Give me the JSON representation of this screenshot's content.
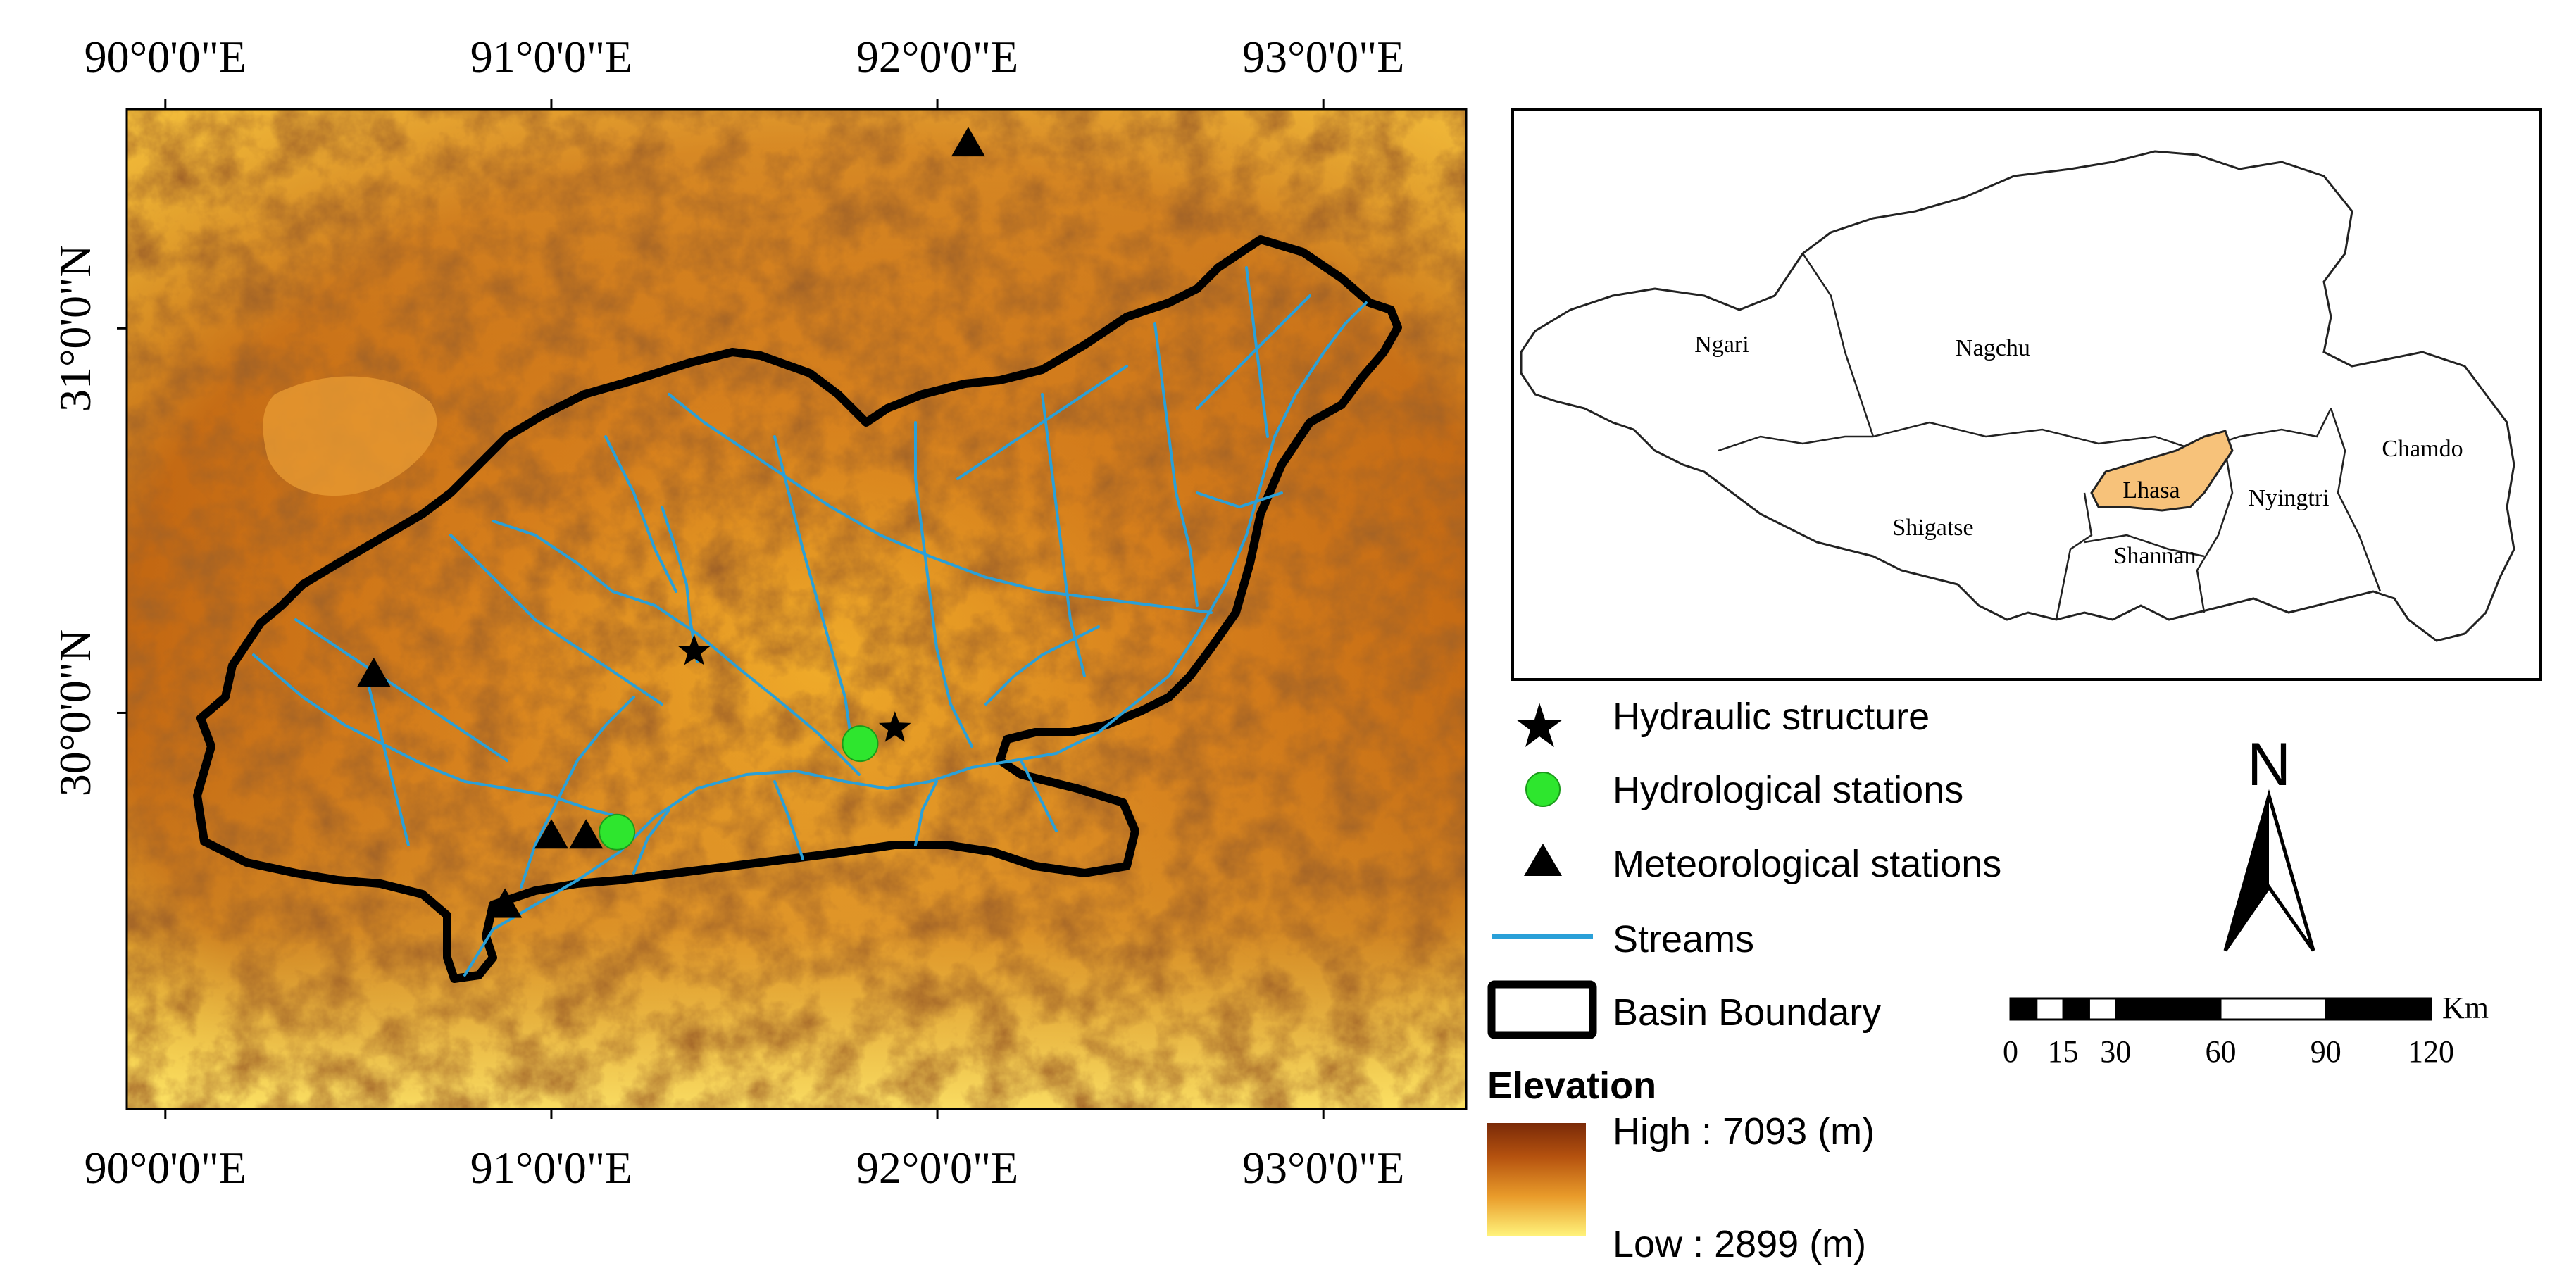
{
  "main_map": {
    "lon_labels": [
      "90°0'0\"E",
      "91°0'0\"E",
      "92°0'0\"E",
      "93°0'0\"E"
    ],
    "lat_labels": [
      "31°0'0\"N",
      "30°0'0\"N"
    ],
    "lon_range": [
      89.9,
      93.37
    ],
    "lat_range": [
      28.97,
      31.57
    ],
    "hydraulic_structures": [
      {
        "lon": 91.37,
        "lat": 30.16
      },
      {
        "lon": 91.89,
        "lat": 29.96
      }
    ],
    "hydrological_stations": [
      {
        "lon": 91.17,
        "lat": 29.69
      },
      {
        "lon": 91.8,
        "lat": 29.92
      }
    ],
    "meteorological_stations": [
      {
        "lon": 92.08,
        "lat": 31.48
      },
      {
        "lon": 90.54,
        "lat": 30.1
      },
      {
        "lon": 91.0,
        "lat": 29.68
      },
      {
        "lon": 91.09,
        "lat": 29.68
      },
      {
        "lon": 90.88,
        "lat": 29.5
      }
    ]
  },
  "inset": {
    "regions": [
      "Ngari",
      "Nagchu",
      "Shigatse",
      "Lhasa",
      "Shannan",
      "Nyingtri",
      "Chamdo"
    ],
    "highlight_color": "#f7c27a"
  },
  "legend": {
    "items": [
      "Hydraulic structure",
      "Hydrological stations",
      "Meteorological stations",
      "Streams",
      "Basin Boundary"
    ],
    "elevation_title": "Elevation",
    "elevation_high": "High : 7093 (m)",
    "elevation_low": "Low : 2899 (m)",
    "elevation_colors": [
      "#7a2a08",
      "#fff27a"
    ],
    "station_color": "#2ee62e",
    "stream_color": "#2aa0d8"
  },
  "north_arrow": {
    "label": "N"
  },
  "scale_bar": {
    "ticks": [
      "0",
      "15",
      "30",
      "60",
      "90",
      "120"
    ],
    "unit": "Km"
  }
}
